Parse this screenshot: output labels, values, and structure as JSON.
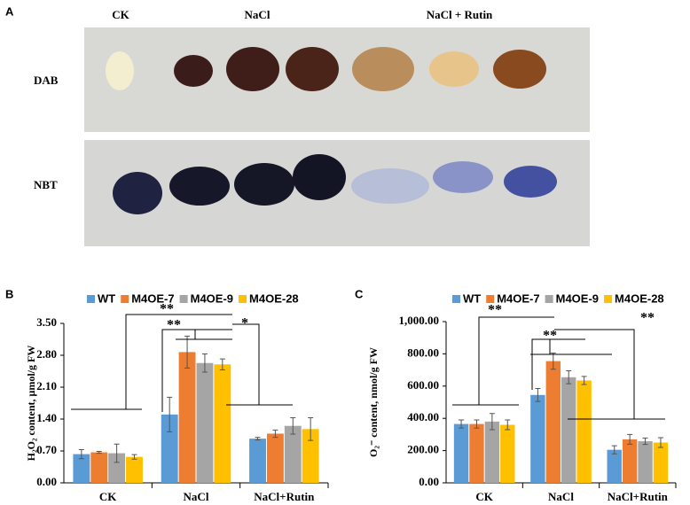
{
  "panel_a": {
    "label": "A",
    "columns": [
      "CK",
      "NaCl",
      "NaCl + Rutin"
    ],
    "rows": [
      "DAB",
      "NBT"
    ]
  },
  "chart_data": [
    {
      "type": "bar",
      "panel_label": "B",
      "ylabel": "H₂O₂ content, μmol/g FW",
      "categories": [
        "CK",
        "NaCl",
        "NaCl+Rutin"
      ],
      "series": [
        {
          "name": "WT",
          "color": "#5b9bd5",
          "values": [
            0.63,
            1.5,
            0.97
          ],
          "errors": [
            0.1,
            0.38,
            0.03
          ]
        },
        {
          "name": "M4OE-7",
          "color": "#ed7d31",
          "values": [
            0.67,
            2.87,
            1.08
          ],
          "errors": [
            0.02,
            0.35,
            0.08
          ]
        },
        {
          "name": "M4OE-9",
          "color": "#a5a5a5",
          "values": [
            0.65,
            2.63,
            1.25
          ],
          "errors": [
            0.2,
            0.2,
            0.18
          ]
        },
        {
          "name": "M4OE-28",
          "color": "#ffc000",
          "values": [
            0.57,
            2.6,
            1.18
          ],
          "errors": [
            0.05,
            0.12,
            0.25
          ]
        }
      ],
      "ylim": [
        0,
        3.5
      ],
      "yticks": [
        {
          "value": 0,
          "label": "0.00"
        },
        {
          "value": 0.7,
          "label": "0.70"
        },
        {
          "value": 1.4,
          "label": "1.40"
        },
        {
          "value": 2.1,
          "label": "2.10"
        },
        {
          "value": 2.8,
          "label": "2.80"
        },
        {
          "value": 3.5,
          "label": "3.50"
        }
      ],
      "annotations": [
        "**",
        "**",
        "*"
      ]
    },
    {
      "type": "bar",
      "panel_label": "C",
      "ylabel": "O₂⁻ content, nmol/g FW",
      "categories": [
        "CK",
        "NaCl",
        "NaCl+Rutin"
      ],
      "series": [
        {
          "name": "WT",
          "color": "#5b9bd5",
          "values": [
            365,
            545,
            205
          ],
          "errors": [
            25,
            40,
            25
          ]
        },
        {
          "name": "M4OE-7",
          "color": "#ed7d31",
          "values": [
            365,
            755,
            270
          ],
          "errors": [
            25,
            50,
            30
          ]
        },
        {
          "name": "M4OE-9",
          "color": "#a5a5a5",
          "values": [
            380,
            655,
            258
          ],
          "errors": [
            50,
            40,
            20
          ]
        },
        {
          "name": "M4OE-28",
          "color": "#ffc000",
          "values": [
            360,
            635,
            250
          ],
          "errors": [
            30,
            25,
            30
          ]
        }
      ],
      "ylim": [
        0,
        1000
      ],
      "yticks": [
        {
          "value": 0,
          "label": "0.00"
        },
        {
          "value": 200,
          "label": "200.00"
        },
        {
          "value": 400,
          "label": "400.00"
        },
        {
          "value": 600,
          "label": "600.00"
        },
        {
          "value": 800,
          "label": "800.00"
        },
        {
          "value": 1000,
          "label": "1,000.00"
        }
      ],
      "annotations": [
        "**",
        "**",
        "**"
      ]
    }
  ]
}
